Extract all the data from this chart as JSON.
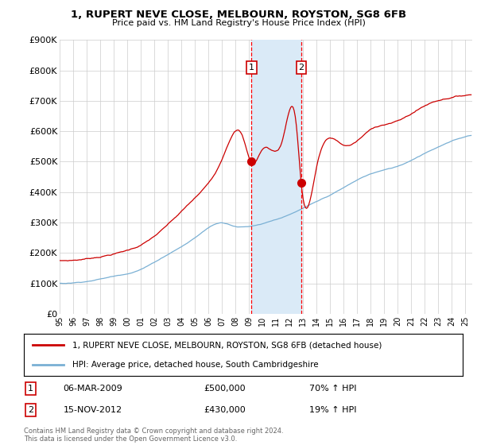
{
  "title": "1, RUPERT NEVE CLOSE, MELBOURN, ROYSTON, SG8 6FB",
  "subtitle": "Price paid vs. HM Land Registry's House Price Index (HPI)",
  "yticks": [
    0,
    100000,
    200000,
    300000,
    400000,
    500000,
    600000,
    700000,
    800000,
    900000
  ],
  "ytick_labels": [
    "£0",
    "£100K",
    "£200K",
    "£300K",
    "£400K",
    "£500K",
    "£600K",
    "£700K",
    "£800K",
    "£900K"
  ],
  "ylim": [
    0,
    900000
  ],
  "xlim_start": 1995.0,
  "xlim_end": 2025.5,
  "red_line_label": "1, RUPERT NEVE CLOSE, MELBOURN, ROYSTON, SG8 6FB (detached house)",
  "blue_line_label": "HPI: Average price, detached house, South Cambridgeshire",
  "transaction1_date": "06-MAR-2009",
  "transaction1_price": "£500,000",
  "transaction1_hpi": "70% ↑ HPI",
  "transaction1_x": 2009.18,
  "transaction1_y": 500000,
  "transaction2_date": "15-NOV-2012",
  "transaction2_price": "£430,000",
  "transaction2_hpi": "19% ↑ HPI",
  "transaction2_x": 2012.87,
  "transaction2_y": 430000,
  "shade_color": "#daeaf7",
  "red_color": "#cc0000",
  "blue_color": "#7ab0d4",
  "footnote": "Contains HM Land Registry data © Crown copyright and database right 2024.\nThis data is licensed under the Open Government Licence v3.0."
}
